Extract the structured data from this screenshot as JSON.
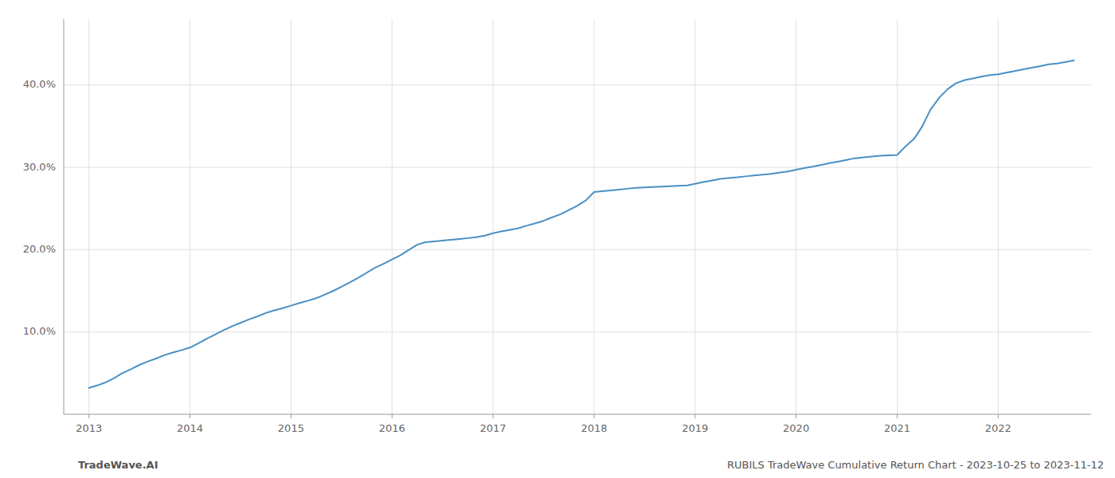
{
  "chart_data": {
    "type": "line",
    "annotations": [
      "TradeWave.AI",
      "RUBILS TradeWave Cumulative Return Chart - 2023-10-25 to 2023-11-12"
    ],
    "color": "#4a90c4",
    "grid": true,
    "x": [
      2013.0,
      2013.08,
      2013.17,
      2013.25,
      2013.33,
      2013.42,
      2013.5,
      2013.58,
      2013.67,
      2013.75,
      2013.83,
      2013.92,
      2014.0,
      2014.08,
      2014.17,
      2014.25,
      2014.33,
      2014.42,
      2014.5,
      2014.58,
      2014.67,
      2014.75,
      2014.83,
      2014.92,
      2015.0,
      2015.08,
      2015.17,
      2015.25,
      2015.33,
      2015.42,
      2015.5,
      2015.58,
      2015.67,
      2015.75,
      2015.83,
      2015.92,
      2016.0,
      2016.08,
      2016.17,
      2016.25,
      2016.33,
      2016.42,
      2016.5,
      2016.58,
      2016.67,
      2016.75,
      2016.83,
      2016.92,
      2017.0,
      2017.08,
      2017.17,
      2017.25,
      2017.33,
      2017.42,
      2017.5,
      2017.58,
      2017.67,
      2017.75,
      2017.83,
      2017.92,
      2018.0,
      2018.08,
      2018.17,
      2018.25,
      2018.33,
      2018.42,
      2018.5,
      2018.58,
      2018.67,
      2018.75,
      2018.83,
      2018.92,
      2019.0,
      2019.08,
      2019.17,
      2019.25,
      2019.33,
      2019.42,
      2019.5,
      2019.58,
      2019.67,
      2019.75,
      2019.83,
      2019.92,
      2020.0,
      2020.08,
      2020.17,
      2020.25,
      2020.33,
      2020.42,
      2020.5,
      2020.58,
      2020.67,
      2020.75,
      2020.83,
      2020.92,
      2021.0,
      2021.08,
      2021.17,
      2021.25,
      2021.33,
      2021.42,
      2021.5,
      2021.58,
      2021.67,
      2021.75,
      2021.83,
      2021.92,
      2022.0,
      2022.08,
      2022.17,
      2022.25,
      2022.33,
      2022.42,
      2022.5,
      2022.58,
      2022.67,
      2022.75
    ],
    "values": [
      3.2,
      3.5,
      3.9,
      4.4,
      5.0,
      5.5,
      6.0,
      6.4,
      6.8,
      7.2,
      7.5,
      7.8,
      8.1,
      8.6,
      9.2,
      9.7,
      10.2,
      10.7,
      11.1,
      11.5,
      11.9,
      12.3,
      12.6,
      12.9,
      13.2,
      13.5,
      13.8,
      14.1,
      14.5,
      15.0,
      15.5,
      16.0,
      16.6,
      17.2,
      17.8,
      18.3,
      18.8,
      19.3,
      20.0,
      20.6,
      20.9,
      21.0,
      21.1,
      21.2,
      21.3,
      21.4,
      21.5,
      21.7,
      22.0,
      22.2,
      22.4,
      22.6,
      22.9,
      23.2,
      23.5,
      23.9,
      24.3,
      24.8,
      25.3,
      26.0,
      27.0,
      27.1,
      27.2,
      27.3,
      27.4,
      27.5,
      27.55,
      27.6,
      27.65,
      27.7,
      27.75,
      27.8,
      28.0,
      28.2,
      28.4,
      28.6,
      28.7,
      28.8,
      28.9,
      29.0,
      29.1,
      29.2,
      29.35,
      29.5,
      29.7,
      29.9,
      30.1,
      30.3,
      30.5,
      30.7,
      30.9,
      31.1,
      31.2,
      31.3,
      31.4,
      31.45,
      31.5,
      32.5,
      33.5,
      35.0,
      37.0,
      38.5,
      39.5,
      40.2,
      40.6,
      40.8,
      41.0,
      41.2,
      41.3,
      41.5,
      41.7,
      41.9,
      42.1,
      42.3,
      42.5,
      42.6,
      42.8,
      43.0
    ],
    "xlim": [
      2012.75,
      2022.92
    ],
    "xticks": [
      2013,
      2014,
      2015,
      2016,
      2017,
      2018,
      2019,
      2020,
      2021,
      2022
    ],
    "ylim": [
      0,
      48
    ],
    "yticks": [
      {
        "value": 10.0,
        "label": "10.0%"
      },
      {
        "value": 20.0,
        "label": "20.0%"
      },
      {
        "value": 30.0,
        "label": "30.0%"
      },
      {
        "value": 40.0,
        "label": "40.0%"
      }
    ]
  }
}
